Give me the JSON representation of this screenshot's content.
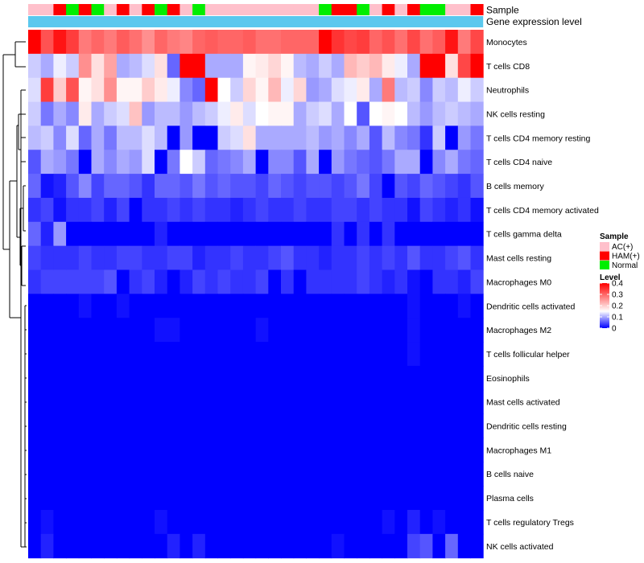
{
  "chart_data": {
    "type": "heatmap",
    "annotation_labels": {
      "sample": "Sample",
      "level_bar": "Gene expression level"
    },
    "sample_legend": {
      "title": "Sample",
      "items": [
        {
          "name": "AC(+)",
          "color": "#ffc0cb"
        },
        {
          "name": "HAM(+)",
          "color": "#ff0000"
        },
        {
          "name": "Normal",
          "color": "#00ee00"
        }
      ]
    },
    "level_legend": {
      "title": "Level",
      "ticks": [
        "0.4",
        "0.3",
        "0.2",
        "0.1",
        "0"
      ],
      "tick_values": [
        0.4,
        0.3,
        0.2,
        0.1,
        0
      ],
      "range": [
        0,
        0.4
      ],
      "colors": {
        "low": "#0000ff",
        "mid": "#ffffff",
        "high": "#ff0000",
        "mid_value": 0.15
      }
    },
    "level_bar_color": "#5bc8ee",
    "samples": [
      "AC",
      "AC",
      "HAM",
      "N",
      "HAM",
      "N",
      "AC",
      "HAM",
      "AC",
      "HAM",
      "N",
      "HAM",
      "AC",
      "N",
      "AC",
      "AC",
      "AC",
      "AC",
      "AC",
      "AC",
      "AC",
      "AC",
      "AC",
      "N",
      "HAM",
      "HAM",
      "N",
      "AC",
      "HAM",
      "AC",
      "HAM",
      "N",
      "N",
      "AC",
      "AC",
      "HAM"
    ],
    "rows": [
      "Monocytes",
      "T cells CD8",
      "Neutrophils",
      "NK cells resting",
      "T cells CD4 memory resting",
      "T cells CD4 naive",
      "B cells memory",
      "T cells CD4 memory activated",
      "T cells gamma delta",
      "Mast cells resting",
      "Macrophages M0",
      "Dendritic cells activated",
      "Macrophages M2",
      "T cells follicular helper",
      "Eosinophils",
      "Mast cells activated",
      "Dendritic cells resting",
      "Macrophages M1",
      "B cells naive",
      "Plasma cells",
      "T cells regulatory  Tregs",
      "NK cells activated"
    ],
    "values": [
      [
        0.4,
        0.32,
        0.38,
        0.34,
        0.28,
        0.3,
        0.28,
        0.31,
        0.29,
        0.26,
        0.3,
        0.28,
        0.27,
        0.3,
        0.31,
        0.3,
        0.3,
        0.31,
        0.29,
        0.29,
        0.3,
        0.3,
        0.3,
        0.45,
        0.35,
        0.33,
        0.34,
        0.3,
        0.32,
        0.29,
        0.33,
        0.29,
        0.31,
        0.38,
        0.28,
        0.33
      ],
      [
        0.12,
        0.1,
        0.14,
        0.12,
        0.26,
        0.18,
        0.24,
        0.1,
        0.11,
        0.13,
        0.18,
        0.06,
        0.4,
        0.4,
        0.1,
        0.1,
        0.1,
        0.16,
        0.17,
        0.19,
        0.16,
        0.11,
        0.1,
        0.12,
        0.1,
        0.22,
        0.2,
        0.22,
        0.17,
        0.14,
        0.1,
        0.4,
        0.4,
        0.18,
        0.33,
        0.4
      ],
      [
        0.13,
        0.34,
        0.2,
        0.32,
        0.16,
        0.18,
        0.26,
        0.16,
        0.16,
        0.2,
        0.17,
        0.14,
        0.08,
        0.06,
        0.4,
        0.15,
        0.12,
        0.19,
        0.16,
        0.22,
        0.14,
        0.19,
        0.09,
        0.1,
        0.13,
        0.14,
        0.17,
        0.1,
        0.28,
        0.11,
        0.12,
        0.08,
        0.12,
        0.11,
        0.14,
        0.12
      ],
      [
        0.12,
        0.07,
        0.1,
        0.08,
        0.17,
        0.1,
        0.12,
        0.13,
        0.21,
        0.09,
        0.11,
        0.11,
        0.09,
        0.11,
        0.12,
        0.14,
        0.17,
        0.13,
        0.15,
        0.16,
        0.16,
        0.1,
        0.12,
        0.13,
        0.1,
        0.15,
        0.05,
        0.15,
        0.16,
        0.15,
        0.11,
        0.09,
        0.11,
        0.12,
        0.11,
        0.1
      ],
      [
        0.11,
        0.12,
        0.08,
        0.13,
        0.06,
        0.1,
        0.07,
        0.11,
        0.11,
        0.13,
        0.11,
        0.0,
        0.09,
        0.0,
        0.0,
        0.12,
        0.13,
        0.18,
        0.1,
        0.1,
        0.1,
        0.1,
        0.11,
        0.09,
        0.1,
        0.08,
        0.1,
        0.05,
        0.11,
        0.08,
        0.07,
        0.03,
        0.12,
        0.0,
        0.09,
        0.07
      ],
      [
        0.05,
        0.1,
        0.09,
        0.07,
        0.0,
        0.1,
        0.08,
        0.1,
        0.09,
        0.13,
        0.0,
        0.07,
        0.15,
        0.12,
        0.06,
        0.07,
        0.08,
        0.1,
        0.0,
        0.08,
        0.08,
        0.05,
        0.1,
        0.0,
        0.09,
        0.07,
        0.06,
        0.05,
        0.07,
        0.1,
        0.1,
        0.0,
        0.08,
        0.1,
        0.07,
        0.06
      ],
      [
        0.06,
        0.01,
        0.02,
        0.05,
        0.08,
        0.04,
        0.06,
        0.06,
        0.05,
        0.03,
        0.06,
        0.06,
        0.05,
        0.07,
        0.05,
        0.06,
        0.05,
        0.05,
        0.04,
        0.06,
        0.05,
        0.04,
        0.05,
        0.05,
        0.04,
        0.05,
        0.07,
        0.04,
        0.0,
        0.05,
        0.04,
        0.06,
        0.05,
        0.04,
        0.03,
        0.05
      ],
      [
        0.03,
        0.04,
        0.01,
        0.03,
        0.03,
        0.04,
        0.02,
        0.04,
        0.0,
        0.03,
        0.03,
        0.04,
        0.03,
        0.04,
        0.03,
        0.03,
        0.02,
        0.03,
        0.04,
        0.03,
        0.03,
        0.04,
        0.03,
        0.03,
        0.04,
        0.04,
        0.03,
        0.04,
        0.03,
        0.03,
        0.01,
        0.04,
        0.03,
        0.02,
        0.03,
        0.01
      ],
      [
        0.06,
        0.02,
        0.09,
        0.0,
        0.0,
        0.0,
        0.0,
        0.0,
        0.0,
        0.0,
        0.02,
        0.0,
        0.0,
        0.0,
        0.0,
        0.0,
        0.0,
        0.0,
        0.0,
        0.0,
        0.0,
        0.0,
        0.0,
        0.0,
        0.03,
        0.0,
        0.03,
        0.0,
        0.03,
        0.0,
        0.0,
        0.0,
        0.0,
        0.0,
        0.0,
        0.0
      ],
      [
        0.04,
        0.03,
        0.03,
        0.03,
        0.04,
        0.03,
        0.03,
        0.04,
        0.04,
        0.03,
        0.03,
        0.04,
        0.04,
        0.02,
        0.03,
        0.03,
        0.04,
        0.03,
        0.03,
        0.04,
        0.05,
        0.03,
        0.03,
        0.02,
        0.03,
        0.03,
        0.04,
        0.03,
        0.04,
        0.03,
        0.05,
        0.03,
        0.03,
        0.04,
        0.05,
        0.03
      ],
      [
        0.03,
        0.04,
        0.04,
        0.04,
        0.04,
        0.04,
        0.05,
        0.0,
        0.03,
        0.04,
        0.02,
        0.0,
        0.02,
        0.04,
        0.03,
        0.04,
        0.03,
        0.03,
        0.04,
        0.0,
        0.03,
        0.0,
        0.03,
        0.03,
        0.03,
        0.03,
        0.04,
        0.03,
        0.02,
        0.03,
        0.01,
        0.0,
        0.03,
        0.03,
        0.02,
        0.04
      ],
      [
        0.0,
        0.0,
        0.0,
        0.0,
        0.01,
        0.0,
        0.0,
        0.01,
        0.0,
        0.0,
        0.0,
        0.0,
        0.0,
        0.0,
        0.0,
        0.0,
        0.0,
        0.0,
        0.0,
        0.0,
        0.0,
        0.0,
        0.0,
        0.0,
        0.0,
        0.0,
        0.0,
        0.0,
        0.0,
        0.0,
        0.01,
        0.0,
        0.0,
        0.0,
        0.01,
        0.0
      ],
      [
        0.0,
        0.0,
        0.0,
        0.0,
        0.0,
        0.0,
        0.0,
        0.0,
        0.0,
        0.0,
        0.01,
        0.01,
        0.0,
        0.0,
        0.0,
        0.0,
        0.0,
        0.0,
        0.01,
        0.0,
        0.0,
        0.0,
        0.0,
        0.0,
        0.0,
        0.0,
        0.0,
        0.0,
        0.0,
        0.0,
        0.01,
        0.0,
        0.0,
        0.0,
        0.0,
        0.0
      ],
      [
        0.0,
        0.0,
        0.0,
        0.0,
        0.0,
        0.0,
        0.0,
        0.0,
        0.0,
        0.0,
        0.0,
        0.0,
        0.0,
        0.0,
        0.0,
        0.0,
        0.0,
        0.0,
        0.0,
        0.0,
        0.0,
        0.0,
        0.0,
        0.0,
        0.0,
        0.0,
        0.0,
        0.0,
        0.0,
        0.0,
        0.01,
        0.0,
        0.0,
        0.0,
        0.0,
        0.0
      ],
      [
        0.0,
        0.0,
        0.0,
        0.0,
        0.0,
        0.0,
        0.0,
        0.0,
        0.0,
        0.0,
        0.0,
        0.0,
        0.0,
        0.0,
        0.0,
        0.0,
        0.0,
        0.0,
        0.0,
        0.0,
        0.0,
        0.0,
        0.0,
        0.0,
        0.0,
        0.0,
        0.0,
        0.0,
        0.0,
        0.0,
        0.0,
        0.0,
        0.0,
        0.0,
        0.0,
        0.0
      ],
      [
        0.0,
        0.0,
        0.0,
        0.0,
        0.0,
        0.0,
        0.0,
        0.0,
        0.0,
        0.0,
        0.0,
        0.0,
        0.0,
        0.0,
        0.0,
        0.0,
        0.0,
        0.0,
        0.0,
        0.0,
        0.0,
        0.0,
        0.0,
        0.0,
        0.0,
        0.0,
        0.0,
        0.0,
        0.0,
        0.0,
        0.0,
        0.0,
        0.0,
        0.0,
        0.0,
        0.0
      ],
      [
        0.0,
        0.0,
        0.0,
        0.0,
        0.0,
        0.0,
        0.0,
        0.0,
        0.0,
        0.0,
        0.0,
        0.0,
        0.0,
        0.0,
        0.0,
        0.0,
        0.0,
        0.0,
        0.0,
        0.0,
        0.0,
        0.0,
        0.0,
        0.0,
        0.0,
        0.0,
        0.0,
        0.0,
        0.0,
        0.0,
        0.0,
        0.0,
        0.0,
        0.0,
        0.0,
        0.0
      ],
      [
        0.0,
        0.0,
        0.0,
        0.0,
        0.0,
        0.0,
        0.0,
        0.0,
        0.0,
        0.0,
        0.0,
        0.0,
        0.0,
        0.0,
        0.0,
        0.0,
        0.0,
        0.0,
        0.0,
        0.0,
        0.0,
        0.0,
        0.0,
        0.0,
        0.0,
        0.0,
        0.0,
        0.0,
        0.0,
        0.0,
        0.0,
        0.0,
        0.0,
        0.0,
        0.0,
        0.0
      ],
      [
        0.0,
        0.0,
        0.0,
        0.0,
        0.0,
        0.0,
        0.0,
        0.0,
        0.0,
        0.0,
        0.0,
        0.0,
        0.0,
        0.0,
        0.0,
        0.0,
        0.0,
        0.0,
        0.0,
        0.0,
        0.0,
        0.0,
        0.0,
        0.0,
        0.0,
        0.0,
        0.0,
        0.0,
        0.0,
        0.0,
        0.0,
        0.0,
        0.0,
        0.0,
        0.0,
        0.0
      ],
      [
        0.0,
        0.0,
        0.0,
        0.0,
        0.0,
        0.0,
        0.0,
        0.0,
        0.0,
        0.0,
        0.0,
        0.0,
        0.0,
        0.0,
        0.0,
        0.0,
        0.0,
        0.0,
        0.0,
        0.0,
        0.0,
        0.0,
        0.0,
        0.0,
        0.0,
        0.0,
        0.0,
        0.0,
        0.0,
        0.0,
        0.0,
        0.0,
        0.0,
        0.0,
        0.0,
        0.0
      ],
      [
        0.0,
        0.01,
        0.0,
        0.0,
        0.0,
        0.0,
        0.0,
        0.0,
        0.0,
        0.0,
        0.01,
        0.0,
        0.0,
        0.0,
        0.0,
        0.0,
        0.0,
        0.0,
        0.0,
        0.0,
        0.0,
        0.0,
        0.0,
        0.0,
        0.0,
        0.0,
        0.0,
        0.0,
        0.01,
        0.0,
        0.02,
        0.0,
        0.01,
        0.0,
        0.0,
        0.0
      ],
      [
        0.0,
        0.02,
        0.0,
        0.0,
        0.0,
        0.0,
        0.0,
        0.0,
        0.0,
        0.0,
        0.0,
        0.02,
        0.0,
        0.02,
        0.0,
        0.0,
        0.0,
        0.0,
        0.0,
        0.0,
        0.0,
        0.0,
        0.0,
        0.0,
        0.01,
        0.0,
        0.0,
        0.0,
        0.0,
        0.0,
        0.04,
        0.05,
        0.0,
        0.06,
        0.0,
        0.0
      ]
    ]
  }
}
